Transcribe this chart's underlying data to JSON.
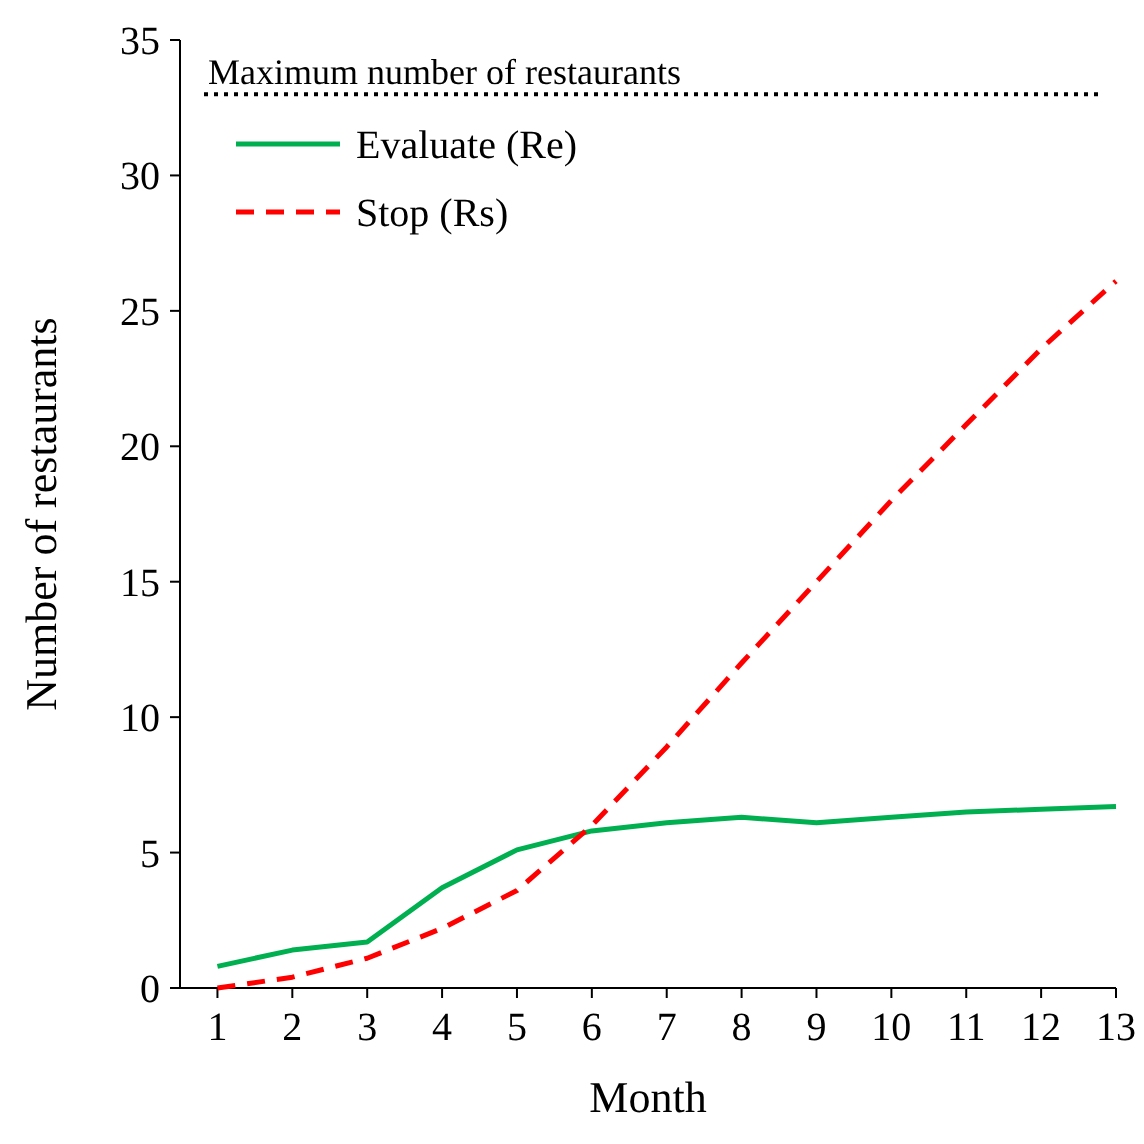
{
  "chart_data": {
    "type": "line",
    "xlabel": "Month",
    "ylabel": "Number of restaurants",
    "x": [
      1,
      2,
      3,
      4,
      5,
      6,
      7,
      8,
      9,
      10,
      11,
      12,
      13
    ],
    "xlim": [
      0.5,
      13
    ],
    "xticks": [
      1,
      2,
      3,
      4,
      5,
      6,
      7,
      8,
      9,
      10,
      11,
      12,
      13
    ],
    "series": [
      {
        "name": "Evaluate (Re)",
        "color": "#00b050",
        "line_style": "solid",
        "values": [
          0.8,
          1.4,
          1.7,
          3.7,
          5.1,
          5.8,
          6.1,
          6.3,
          6.1,
          6.3,
          6.5,
          6.6,
          6.7
        ]
      },
      {
        "name": "Stop (Rs)",
        "color": "#ff0000",
        "line_style": "dashed",
        "values": [
          0,
          0.4,
          1.1,
          2.2,
          3.6,
          6,
          8.9,
          12,
          15,
          18,
          20.8,
          23.6,
          26.1
        ]
      }
    ],
    "ylim": [
      0,
      35
    ],
    "yticks": [
      0,
      5,
      10,
      15,
      20,
      25,
      30,
      35
    ],
    "ref_lines": [
      {
        "axis": "y",
        "value": 33,
        "label": "Maximum number of restaurants",
        "color": "#000000",
        "line_style": "dotted"
      }
    ],
    "legend": "top left",
    "grid": false
  }
}
